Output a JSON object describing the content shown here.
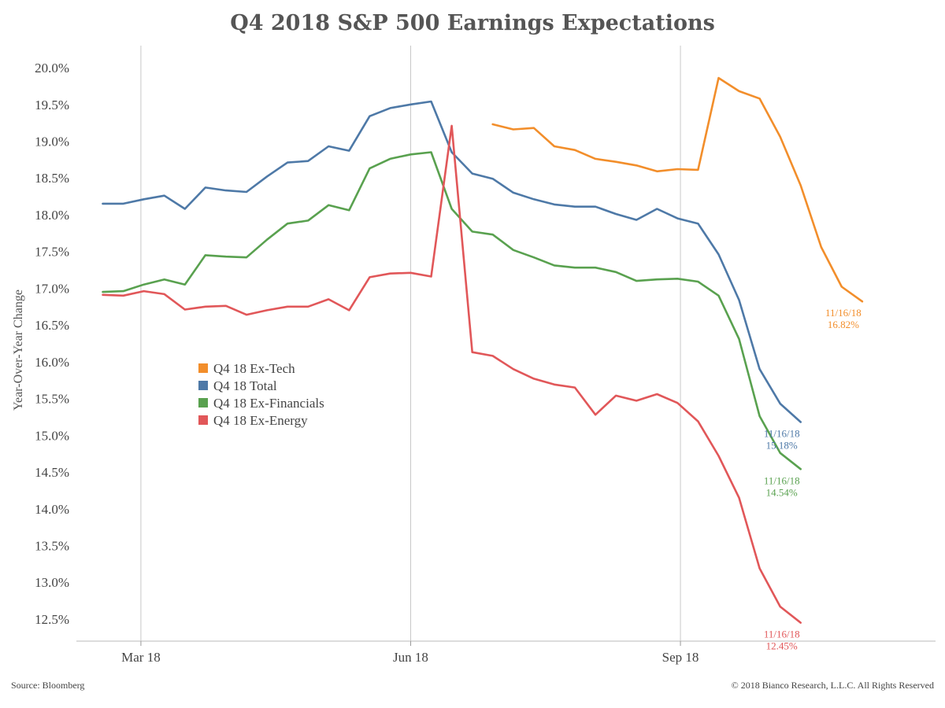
{
  "chart_data": {
    "type": "line",
    "title": "Q4 2018 S&P 500 Earnings Expectations",
    "ylabel": "Year-Over-Year Change",
    "xlabel": "",
    "ylim": [
      12.2,
      20.3
    ],
    "y_ticks": [
      "12.5%",
      "13.0%",
      "13.5%",
      "14.0%",
      "14.5%",
      "15.0%",
      "15.5%",
      "16.0%",
      "16.5%",
      "17.0%",
      "17.5%",
      "18.0%",
      "18.5%",
      "19.0%",
      "19.5%",
      "20.0%"
    ],
    "y_tick_values": [
      12.5,
      13.0,
      13.5,
      14.0,
      14.5,
      15.0,
      15.5,
      16.0,
      16.5,
      17.0,
      17.5,
      18.0,
      18.5,
      19.0,
      19.5,
      20.0
    ],
    "x_ticks": [
      "Mar 18",
      "Jun 18",
      "Sep 18"
    ],
    "x_tick_dates": [
      "2018-03-01",
      "2018-06-01",
      "2018-09-01"
    ],
    "x_range": [
      "2018-02-07",
      "2018-11-27"
    ],
    "vertical_gridlines": true,
    "legend_position": "center-left",
    "series": [
      {
        "name": "Q4 18 Ex-Tech",
        "color": "#f28e2b",
        "end_label": "11/16/18",
        "end_value_label": "16.82%",
        "x": [
          "2018-06-29",
          "2018-07-06",
          "2018-07-13",
          "2018-07-20",
          "2018-07-27",
          "2018-08-03",
          "2018-08-10",
          "2018-08-17",
          "2018-08-24",
          "2018-08-31",
          "2018-09-07",
          "2018-09-14",
          "2018-09-21",
          "2018-09-28",
          "2018-10-05",
          "2018-10-12",
          "2018-10-19",
          "2018-10-26",
          "2018-11-02",
          "2018-11-09",
          "2018-11-16"
        ],
        "y": [
          19.23,
          19.16,
          19.18,
          18.93,
          18.88,
          18.76,
          18.72,
          18.67,
          18.59,
          18.62,
          18.61,
          19.86,
          19.68,
          19.58,
          19.06,
          18.4,
          17.56,
          17.02,
          16.82,
          null,
          null
        ]
      },
      {
        "name": "Q4 18 Total",
        "color": "#4e79a7",
        "end_label": "11/16/18",
        "end_value_label": "15.18%",
        "x": [
          "2018-02-16",
          "2018-02-23",
          "2018-03-02",
          "2018-03-09",
          "2018-03-16",
          "2018-03-23",
          "2018-03-30",
          "2018-04-06",
          "2018-04-13",
          "2018-04-20",
          "2018-04-27",
          "2018-05-04",
          "2018-05-11",
          "2018-05-18",
          "2018-05-25",
          "2018-06-01",
          "2018-06-08",
          "2018-06-15",
          "2018-06-22",
          "2018-06-29",
          "2018-07-06",
          "2018-07-13",
          "2018-07-20",
          "2018-07-27",
          "2018-08-03",
          "2018-08-10",
          "2018-08-17",
          "2018-08-24",
          "2018-08-31",
          "2018-09-07",
          "2018-09-14",
          "2018-09-21",
          "2018-09-28",
          "2018-10-05",
          "2018-10-12",
          "2018-10-19",
          "2018-10-26",
          "2018-11-02",
          "2018-11-09",
          "2018-11-16"
        ],
        "y": [
          18.15,
          18.15,
          18.21,
          18.26,
          18.08,
          18.37,
          18.33,
          18.31,
          18.52,
          18.71,
          18.73,
          18.93,
          18.87,
          19.34,
          19.45,
          19.5,
          19.54,
          18.85,
          18.56,
          18.49,
          18.3,
          18.21,
          18.14,
          18.11,
          18.11,
          18.01,
          17.93,
          18.08,
          17.95,
          17.88,
          17.46,
          16.84,
          15.9,
          15.43,
          15.18,
          null,
          null,
          null,
          null,
          null
        ]
      },
      {
        "name": "Q4 18 Ex-Financials",
        "color": "#59a14f",
        "end_label": "11/16/18",
        "end_value_label": "14.54%",
        "x": [
          "2018-02-16",
          "2018-02-23",
          "2018-03-02",
          "2018-03-09",
          "2018-03-16",
          "2018-03-23",
          "2018-03-30",
          "2018-04-06",
          "2018-04-13",
          "2018-04-20",
          "2018-04-27",
          "2018-05-04",
          "2018-05-11",
          "2018-05-18",
          "2018-05-25",
          "2018-06-01",
          "2018-06-08",
          "2018-06-15",
          "2018-06-22",
          "2018-06-29",
          "2018-07-06",
          "2018-07-13",
          "2018-07-20",
          "2018-07-27",
          "2018-08-03",
          "2018-08-10",
          "2018-08-17",
          "2018-08-24",
          "2018-08-31",
          "2018-09-07",
          "2018-09-14",
          "2018-09-21",
          "2018-09-28",
          "2018-10-05",
          "2018-10-12",
          "2018-10-19",
          "2018-10-26",
          "2018-11-02",
          "2018-11-09",
          "2018-11-16"
        ],
        "y": [
          16.95,
          16.96,
          17.05,
          17.12,
          17.05,
          17.45,
          17.43,
          17.42,
          17.66,
          17.88,
          17.92,
          18.13,
          18.06,
          18.63,
          18.76,
          18.82,
          18.85,
          18.08,
          17.77,
          17.73,
          17.52,
          17.42,
          17.31,
          17.28,
          17.28,
          17.22,
          17.1,
          17.12,
          17.13,
          17.09,
          16.9,
          16.31,
          15.26,
          14.76,
          14.54,
          null,
          null,
          null,
          null,
          null
        ]
      },
      {
        "name": "Q4 18 Ex-Energy",
        "color": "#e15759",
        "end_label": "11/16/18",
        "end_value_label": "12.45%",
        "x": [
          "2018-02-16",
          "2018-02-23",
          "2018-03-02",
          "2018-03-09",
          "2018-03-16",
          "2018-03-23",
          "2018-03-30",
          "2018-04-06",
          "2018-04-13",
          "2018-04-20",
          "2018-04-27",
          "2018-05-04",
          "2018-05-11",
          "2018-05-18",
          "2018-05-25",
          "2018-06-01",
          "2018-06-08",
          "2018-06-15",
          "2018-06-22",
          "2018-06-29",
          "2018-07-06",
          "2018-07-13",
          "2018-07-20",
          "2018-07-27",
          "2018-08-03",
          "2018-08-10",
          "2018-08-17",
          "2018-08-24",
          "2018-08-31",
          "2018-09-07",
          "2018-09-14",
          "2018-09-21",
          "2018-09-28",
          "2018-10-05",
          "2018-10-12",
          "2018-10-19",
          "2018-10-26",
          "2018-11-02",
          "2018-11-09",
          "2018-11-16"
        ],
        "y": [
          16.91,
          16.9,
          16.96,
          16.92,
          16.71,
          16.75,
          16.76,
          16.64,
          16.7,
          16.75,
          16.75,
          16.85,
          16.7,
          17.15,
          17.2,
          17.21,
          17.16,
          19.21,
          16.13,
          16.08,
          15.9,
          15.77,
          15.69,
          15.65,
          15.28,
          15.54,
          15.47,
          15.56,
          15.44,
          15.19,
          14.72,
          14.15,
          13.19,
          12.67,
          12.45,
          null,
          null,
          null,
          null,
          null
        ]
      }
    ]
  },
  "footer": {
    "source": "Source: Bloomberg",
    "copyright": "© 2018 Bianco Research, L.L.C. All Rights Reserved"
  }
}
